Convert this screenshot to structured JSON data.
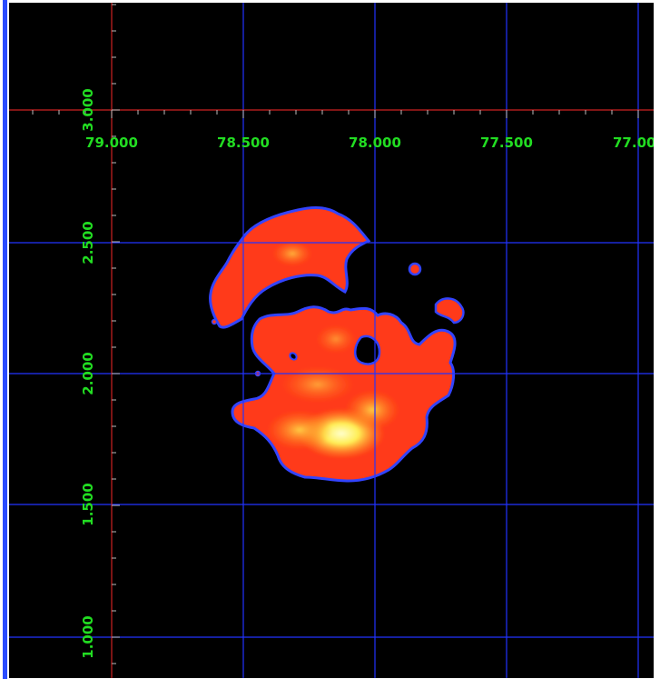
{
  "image_viewer": {
    "colors": {
      "background": "#000000",
      "grid_line": "#2233ff",
      "axis_line": "#cc2222",
      "tick_label": "#22dd22",
      "frame_accent": "#2a4cff"
    },
    "x_axis": {
      "tick_labels": [
        "79.000",
        "78.500",
        "78.000",
        "77.500",
        "77.00"
      ],
      "tick_values": [
        79.0,
        78.5,
        78.0,
        77.5,
        77.0
      ],
      "direction": "decreasing left-to-right"
    },
    "y_axis": {
      "tick_labels": [
        "3.000",
        "2.500",
        "2.000",
        "1.500",
        "1.000"
      ],
      "tick_values": [
        3.0,
        2.5,
        2.0,
        1.5,
        1.0
      ],
      "label_orientation": "vertical"
    },
    "image": {
      "colormap": "heat",
      "description_icon": "heatmap-blob"
    }
  }
}
